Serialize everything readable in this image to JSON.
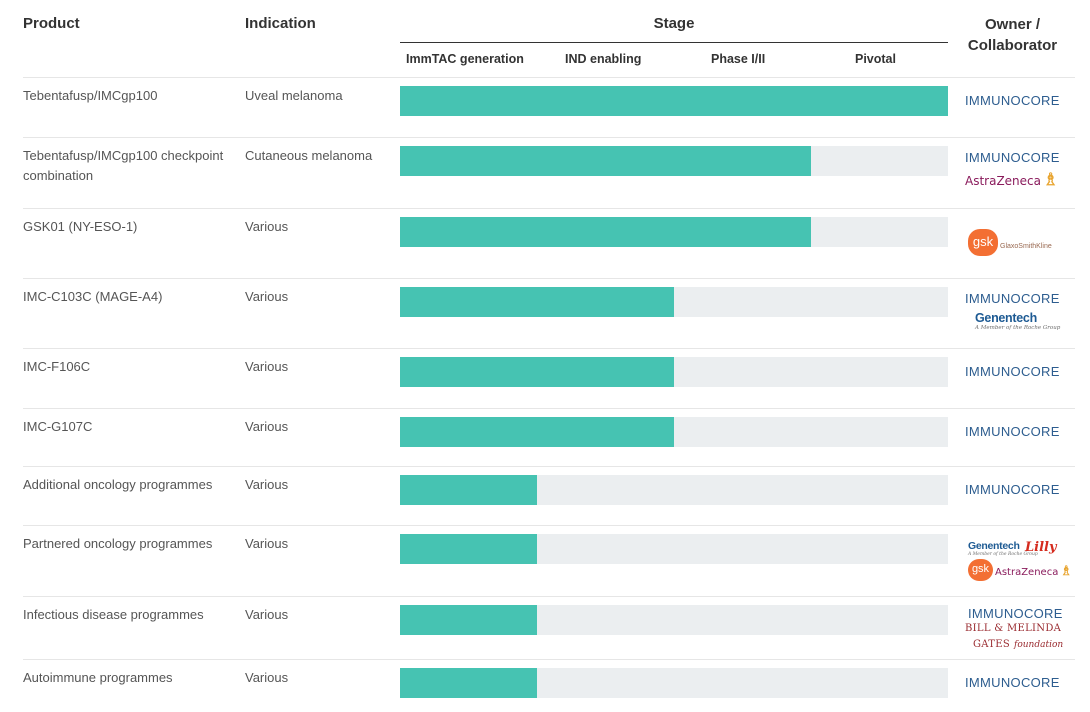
{
  "headers": {
    "product": "Product",
    "indication": "Indication",
    "stage": "Stage",
    "owner": "Owner /\nCollaborator"
  },
  "stages": [
    "ImmTAC generation",
    "IND enabling",
    "Phase I/II",
    "Pivotal"
  ],
  "colors": {
    "bar_fill": "#46c3b2",
    "bar_track": "#ebeef0"
  },
  "logo_text": {
    "immunocore": "IMMUNOCORE",
    "astrazeneca": "AstraZeneca",
    "genentech": "Genentech",
    "genentech_sub": "A Member of the Roche Group",
    "gsk": "gsk",
    "gsk_full": "GlaxoSmithKline",
    "lilly": "Lilly",
    "gates_line1": "BILL & MELINDA",
    "gates_line2": "GATES",
    "gates_foundation": "foundation"
  },
  "chart_data": {
    "type": "bar",
    "orientation": "horizontal",
    "xlabel": "Stage",
    "x_categories": [
      "ImmTAC generation",
      "IND enabling",
      "Phase I/II",
      "Pivotal"
    ],
    "xlim": [
      0,
      4
    ],
    "categories": [
      "Tebentafusp/IMCgp100",
      "Tebentafusp/IMCgp100 checkpoint combination",
      "GSK01 (NY-ESO-1)",
      "IMC-C103C (MAGE-A4)",
      "IMC-F106C",
      "IMC-G107C",
      "Additional oncology programmes",
      "Partnered oncology programmes",
      "Infectious disease programmes",
      "Autoimmune programmes"
    ],
    "values": [
      4,
      3,
      3,
      2,
      2,
      2,
      1,
      1,
      1,
      1
    ]
  },
  "rows": [
    {
      "product": "Tebentafusp/IMCgp100",
      "indication": "Uveal melanoma",
      "owners": [
        "immunocore"
      ]
    },
    {
      "product": "Tebentafusp/IMCgp100 checkpoint combination",
      "indication": "Cutaneous melanoma",
      "owners": [
        "immunocore",
        "astrazeneca"
      ]
    },
    {
      "product": "GSK01 (NY-ESO-1)",
      "indication": "Various",
      "owners": [
        "gsk"
      ]
    },
    {
      "product": "IMC-C103C (MAGE-A4)",
      "indication": "Various",
      "owners": [
        "immunocore",
        "genentech"
      ]
    },
    {
      "product": "IMC-F106C",
      "indication": "Various",
      "owners": [
        "immunocore"
      ]
    },
    {
      "product": "IMC-G107C",
      "indication": "Various",
      "owners": [
        "immunocore"
      ]
    },
    {
      "product": "Additional oncology programmes",
      "indication": "Various",
      "owners": [
        "immunocore"
      ]
    },
    {
      "product": "Partnered oncology programmes",
      "indication": "Various",
      "owners": [
        "genentech",
        "lilly",
        "gsk",
        "astrazeneca"
      ]
    },
    {
      "product": "Infectious disease programmes",
      "indication": "Various",
      "owners": [
        "immunocore",
        "gates"
      ]
    },
    {
      "product": "Autoimmune programmes",
      "indication": "Various",
      "owners": [
        "immunocore"
      ]
    }
  ]
}
